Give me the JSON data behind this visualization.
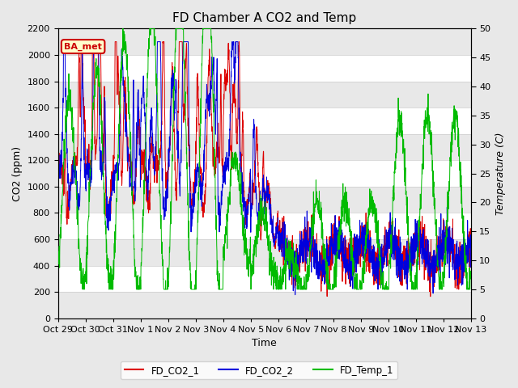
{
  "title": "FD Chamber A CO2 and Temp",
  "xlabel": "Time",
  "ylabel_left": "CO2 (ppm)",
  "ylabel_right": "Temperature (C)",
  "ylim_left": [
    0,
    2200
  ],
  "ylim_right": [
    0,
    50
  ],
  "yticks_left": [
    0,
    200,
    400,
    600,
    800,
    1000,
    1200,
    1400,
    1600,
    1800,
    2000,
    2200
  ],
  "yticks_right": [
    0,
    5,
    10,
    15,
    20,
    25,
    30,
    35,
    40,
    45,
    50
  ],
  "xtick_labels": [
    "Oct 29",
    "Oct 30",
    "Oct 31",
    "Nov 1",
    "Nov 2",
    "Nov 3",
    "Nov 4",
    "Nov 5",
    "Nov 6",
    "Nov 7",
    "Nov 8",
    "Nov 9",
    "Nov 10",
    "Nov 11",
    "Nov 12",
    "Nov 13"
  ],
  "annotation_text": "BA_met",
  "annotation_bg": "#ffffcc",
  "annotation_border": "#cc0000",
  "color_co2_1": "#dd0000",
  "color_co2_2": "#0000dd",
  "color_temp": "#00bb00",
  "legend_labels": [
    "FD_CO2_1",
    "FD_CO2_2",
    "FD_Temp_1"
  ],
  "background_color": "#e8e8e8",
  "plot_bg": "#ffffff",
  "band_color": "#e8e8e8",
  "title_fontsize": 11,
  "axis_fontsize": 9,
  "tick_fontsize": 8
}
